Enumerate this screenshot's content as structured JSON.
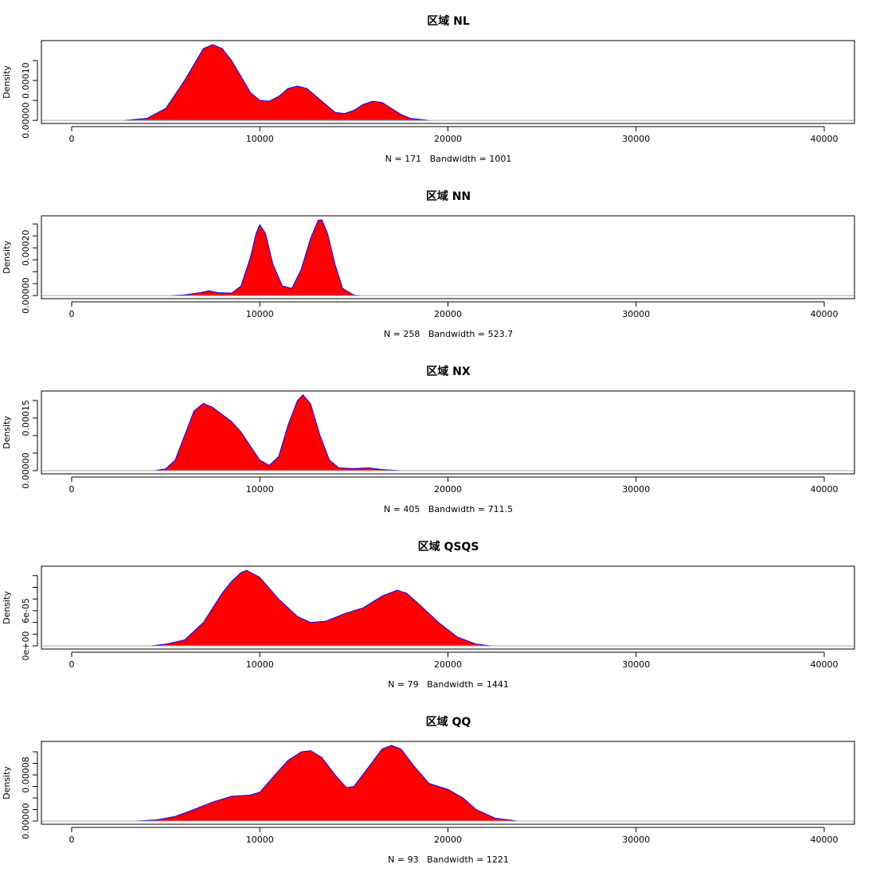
{
  "chart_data": [
    {
      "type": "density",
      "title": "区域 NL",
      "xlabel": "N = 171   Bandwidth = 1001",
      "ylabel": "Density",
      "color": "red",
      "line_color": "blue",
      "x": [
        2800,
        4000,
        5000,
        6000,
        6500,
        7000,
        7500,
        8000,
        8500,
        9000,
        9500,
        10000,
        10500,
        11000,
        11500,
        12000,
        12500,
        13000,
        13500,
        14000,
        14500,
        15000,
        15500,
        16000,
        16500,
        17000,
        17500,
        18000,
        19000
      ],
      "values": [
        0,
        5e-06,
        3e-05,
        0.0001,
        0.00014,
        0.00018,
        0.00019,
        0.00018,
        0.00015,
        0.00011,
        7e-05,
        5e-05,
        4.8e-05,
        6e-05,
        8e-05,
        8.6e-05,
        8e-05,
        6e-05,
        4e-05,
        2e-05,
        1.7e-05,
        2.5e-05,
        4e-05,
        4.8e-05,
        4.5e-05,
        3e-05,
        1.5e-05,
        5e-06,
        0
      ],
      "xlim": [
        -1608,
        41608
      ],
      "ylim": [
        -7.7e-06,
        0.0002
      ],
      "xticks": [
        0,
        10000,
        20000,
        30000,
        40000
      ],
      "yticks": [
        {
          "value": 0,
          "label": "0.00000"
        },
        {
          "value": 0.0001,
          "label": "0.00010"
        }
      ],
      "yticks_minor": [
        5e-05,
        0.00015
      ]
    },
    {
      "type": "density",
      "title": "区域 NN",
      "xlabel": "N = 258   Bandwidth = 523.7",
      "ylabel": "Density",
      "color": "red",
      "line_color": "blue",
      "x": [
        5300,
        6000,
        6800,
        7300,
        7800,
        8500,
        9000,
        9500,
        9800,
        10000,
        10300,
        10700,
        11200,
        11700,
        12200,
        12700,
        13100,
        13300,
        13600,
        14000,
        14400,
        15000,
        15300
      ],
      "values": [
        0,
        3e-06,
        1.2e-05,
        2e-05,
        1.2e-05,
        1e-05,
        4e-05,
        0.00016,
        0.00026,
        0.000297,
        0.00026,
        0.00013,
        4e-05,
        3e-05,
        0.00011,
        0.00024,
        0.000315,
        0.000317,
        0.00026,
        0.00013,
        3e-05,
        2e-06,
        0
      ],
      "xlim": [
        -1608,
        41608
      ],
      "ylim": [
        -1.28e-05,
        0.000334
      ],
      "xticks": [
        0,
        10000,
        20000,
        30000,
        40000
      ],
      "yticks": [
        {
          "value": 0,
          "label": "0.00000"
        },
        {
          "value": 0.0002,
          "label": "0.00020"
        }
      ],
      "yticks_minor": [
        5e-05,
        0.0001,
        0.00015,
        0.00025,
        0.0003
      ]
    },
    {
      "type": "density",
      "title": "区域 NX",
      "xlabel": "N = 405   Bandwidth = 711.5",
      "ylabel": "Density",
      "color": "red",
      "line_color": "blue",
      "x": [
        4400,
        5000,
        5500,
        6000,
        6500,
        7000,
        7500,
        8000,
        8500,
        9000,
        9500,
        10000,
        10500,
        11000,
        11500,
        12000,
        12300,
        12700,
        13200,
        13700,
        14200,
        15000,
        15800,
        16500,
        17500
      ],
      "values": [
        0,
        5e-06,
        3e-05,
        0.0001,
        0.00017,
        0.000192,
        0.00018,
        0.00016,
        0.00014,
        0.00011,
        7e-05,
        3e-05,
        1.5e-05,
        4e-05,
        0.00013,
        0.0002,
        0.000216,
        0.00019,
        0.0001,
        3e-05,
        8e-06,
        6e-06,
        8e-06,
        3e-06,
        0
      ],
      "xlim": [
        -1608,
        41608
      ],
      "ylim": [
        -9.1e-06,
        0.000227
      ],
      "xticks": [
        0,
        10000,
        20000,
        30000,
        40000
      ],
      "yticks": [
        {
          "value": 0,
          "label": "0.00000"
        },
        {
          "value": 0.00015,
          "label": "0.00015"
        }
      ],
      "yticks_minor": [
        5e-05,
        0.0001,
        0.0002
      ]
    },
    {
      "type": "density",
      "title": "区域 QSQS",
      "xlabel": "N = 79   Bandwidth = 1441",
      "ylabel": "Density",
      "color": "red",
      "line_color": "blue",
      "x": [
        4200,
        5000,
        6000,
        7000,
        8000,
        8500,
        9000,
        9300,
        10000,
        11000,
        12000,
        12700,
        13500,
        14500,
        15500,
        16500,
        17300,
        17800,
        18500,
        19500,
        20500,
        21500,
        22300
      ],
      "values": [
        0,
        3e-06,
        1e-05,
        4e-05,
        9e-05,
        0.00011,
        0.000125,
        0.000129,
        0.000117,
        8e-05,
        5e-05,
        4e-05,
        4.2e-05,
        5.5e-05,
        6.5e-05,
        8.5e-05,
        9.5e-05,
        9e-05,
        7e-05,
        4e-05,
        1.5e-05,
        3e-06,
        0
      ],
      "xlim": [
        -1608,
        41608
      ],
      "ylim": [
        -5.4e-06,
        0.000136
      ],
      "xticks": [
        0,
        10000,
        20000,
        30000,
        40000
      ],
      "yticks": [
        {
          "value": 0,
          "label": "0e+00"
        },
        {
          "value": 6e-05,
          "label": "6e-05"
        }
      ],
      "yticks_minor": [
        2e-05,
        4e-05,
        8e-05,
        0.0001,
        0.00012
      ]
    },
    {
      "type": "density",
      "title": "区域 QQ",
      "xlabel": "N = 93   Bandwidth = 1221",
      "ylabel": "Density",
      "color": "red",
      "line_color": "blue",
      "x": [
        3400,
        4500,
        5500,
        6500,
        7500,
        8500,
        9500,
        10000,
        10800,
        11500,
        12200,
        12700,
        13300,
        14000,
        14600,
        15000,
        15700,
        16500,
        17000,
        17500,
        18200,
        19000,
        20000,
        20800,
        21500,
        22500,
        23700
      ],
      "values": [
        0,
        2e-06,
        8e-06,
        2e-05,
        3.3e-05,
        4.3e-05,
        4.5e-05,
        5e-05,
        8e-05,
        0.000105,
        0.00012,
        0.000122,
        0.00011,
        8e-05,
        5.8e-05,
        6e-05,
        9e-05,
        0.000125,
        0.000131,
        0.000125,
        9.5e-05,
        6.5e-05,
        5.5e-05,
        4e-05,
        2e-05,
        5e-06,
        0
      ],
      "xlim": [
        -1608,
        41608
      ],
      "ylim": [
        -5.5e-06,
        0.000138
      ],
      "xticks": [
        0,
        10000,
        20000,
        30000,
        40000
      ],
      "yticks": [
        {
          "value": 0,
          "label": "0.00000"
        },
        {
          "value": 8e-05,
          "label": "0.00008"
        }
      ],
      "yticks_minor": [
        2e-05,
        4e-05,
        6e-05,
        0.0001,
        0.00012
      ]
    }
  ]
}
